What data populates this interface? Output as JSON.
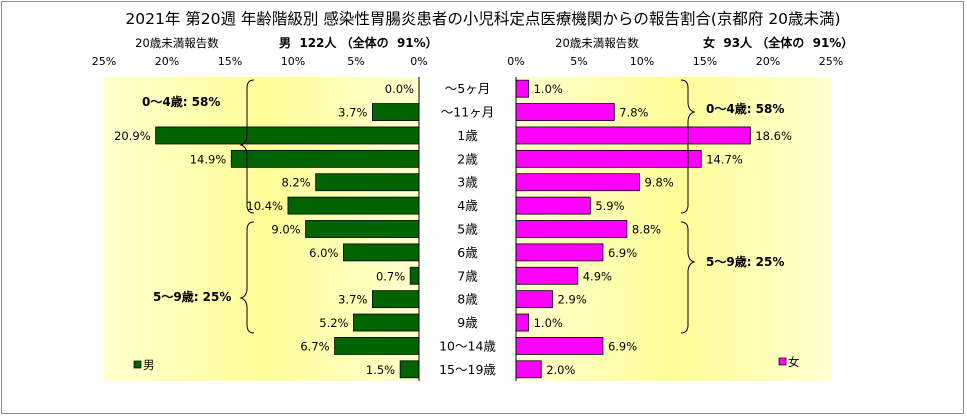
{
  "title": "2021年 第20週 年齢階級別 感染性胃腸炎患者の小児科定点医療機関からの報告割合(京都府 20歳未満)",
  "left_panel": {
    "caption": "20歳未満報告数",
    "summary": "男  122人 （全体の  91%）",
    "legend": "男",
    "group_labels": [
      "0～4歳: 58%",
      "5～9歳: 25%"
    ]
  },
  "right_panel": {
    "caption": "20歳未満報告数",
    "summary": "女  93人 （全体の  91%）",
    "legend": "女",
    "group_labels": [
      "0～4歳: 58%",
      "5～9歳: 25%"
    ]
  },
  "colors": {
    "male_bar": "#006400",
    "female_bar": "#ff00ff",
    "plot_bg_edge": "#ffffd0",
    "plot_bg_center": "#fefe98"
  },
  "chart_data": {
    "type": "bar",
    "orientation": "horizontal",
    "categories": [
      "～5ヶ月",
      "～11ヶ月",
      "1歳",
      "2歳",
      "3歳",
      "4歳",
      "5歳",
      "6歳",
      "7歳",
      "8歳",
      "9歳",
      "10～14歳",
      "15～19歳"
    ],
    "series": [
      {
        "name": "男",
        "values": [
          0.0,
          3.7,
          20.9,
          14.9,
          8.2,
          10.4,
          9.0,
          6.0,
          0.7,
          3.7,
          5.2,
          6.7,
          1.5
        ],
        "labels": [
          "0.0%",
          "3.7%",
          "20.9%",
          "14.9%",
          "8.2%",
          "10.4%",
          "9.0%",
          "6.0%",
          "0.7%",
          "3.7%",
          "5.2%",
          "6.7%",
          "1.5%"
        ]
      },
      {
        "name": "女",
        "values": [
          1.0,
          7.8,
          18.6,
          14.7,
          9.8,
          5.9,
          8.8,
          6.9,
          4.9,
          2.9,
          1.0,
          6.9,
          2.0
        ],
        "labels": [
          "1.0%",
          "7.8%",
          "18.6%",
          "14.7%",
          "9.8%",
          "5.9%",
          "8.8%",
          "6.9%",
          "4.9%",
          "2.9%",
          "1.0%",
          "6.9%",
          "2.0%"
        ]
      }
    ],
    "xlim": [
      0,
      25
    ],
    "ticks": [
      0,
      5,
      10,
      15,
      20,
      25
    ],
    "tick_labels": [
      "0%",
      "5%",
      "10%",
      "15%",
      "20%",
      "25%"
    ]
  }
}
